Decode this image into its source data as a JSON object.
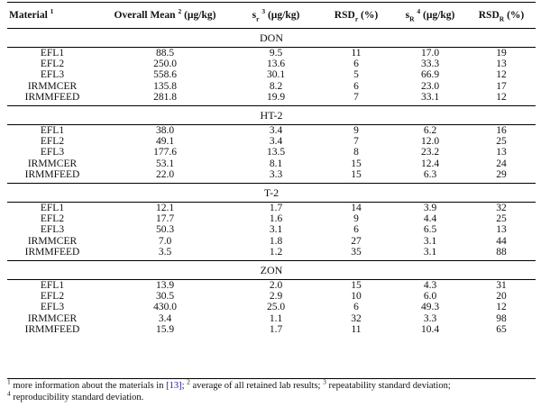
{
  "headers": {
    "material": "Material",
    "material_sup": "1",
    "overall_mean": "Overall Mean",
    "overall_mean_sup": "2",
    "overall_mean_unit": "(µg/kg)",
    "sr_base": "s",
    "sr_sub": "r",
    "sr_sup": "3",
    "sr_unit": "(µg/kg)",
    "rsdr_base": "RSD",
    "rsdr_sub": "r",
    "rsdr_unit": "(%)",
    "sR_base": "s",
    "sR_sub": "R",
    "sR_sup": "4",
    "sR_unit": "(µg/kg)",
    "rsdR_base": "RSD",
    "rsdR_sub": "R",
    "rsdR_unit": "(%)"
  },
  "sections": [
    {
      "title": "DON",
      "rows": [
        [
          "EFL1",
          "88.5",
          "9.5",
          "11",
          "17.0",
          "19"
        ],
        [
          "EFL2",
          "250.0",
          "13.6",
          "6",
          "33.3",
          "13"
        ],
        [
          "EFL3",
          "558.6",
          "30.1",
          "5",
          "66.9",
          "12"
        ],
        [
          "IRMMCER",
          "135.8",
          "8.2",
          "6",
          "23.0",
          "17"
        ],
        [
          "IRMMFEED",
          "281.8",
          "19.9",
          "7",
          "33.1",
          "12"
        ]
      ]
    },
    {
      "title": "HT-2",
      "rows": [
        [
          "EFL1",
          "38.0",
          "3.4",
          "9",
          "6.2",
          "16"
        ],
        [
          "EFL2",
          "49.1",
          "3.4",
          "7",
          "12.0",
          "25"
        ],
        [
          "EFL3",
          "177.6",
          "13.5",
          "8",
          "23.2",
          "13"
        ],
        [
          "IRMMCER",
          "53.1",
          "8.1",
          "15",
          "12.4",
          "24"
        ],
        [
          "IRMMFEED",
          "22.0",
          "3.3",
          "15",
          "6.3",
          "29"
        ]
      ]
    },
    {
      "title": "T-2",
      "rows": [
        [
          "EFL1",
          "12.1",
          "1.7",
          "14",
          "3.9",
          "32"
        ],
        [
          "EFL2",
          "17.7",
          "1.6",
          "9",
          "4.4",
          "25"
        ],
        [
          "EFL3",
          "50.3",
          "3.1",
          "6",
          "6.5",
          "13"
        ],
        [
          "IRMMCER",
          "7.0",
          "1.8",
          "27",
          "3.1",
          "44"
        ],
        [
          "IRMMFEED",
          "3.5",
          "1.2",
          "35",
          "3.1",
          "88"
        ]
      ]
    },
    {
      "title": "ZON",
      "rows": [
        [
          "EFL1",
          "13.9",
          "2.0",
          "15",
          "4.3",
          "31"
        ],
        [
          "EFL2",
          "30.5",
          "2.9",
          "10",
          "6.0",
          "20"
        ],
        [
          "EFL3",
          "430.0",
          "25.0",
          "6",
          "49.3",
          "12"
        ],
        [
          "IRMMCER",
          "3.4",
          "1.1",
          "32",
          "3.3",
          "98"
        ],
        [
          "IRMMFEED",
          "15.9",
          "1.7",
          "11",
          "10.4",
          "65"
        ]
      ]
    }
  ],
  "footnotes": {
    "n1_sup": "1",
    "n1_text": " more information about the materials in ",
    "n1_ref": "[13]",
    "n2_sep": "; ",
    "n2_sup": "2",
    "n2_text": " average of all retained lab results; ",
    "n3_sup": "3",
    "n3_text": " repeatability standard deviation;",
    "n4_sup": "4",
    "n4_text": " reproducibility standard deviation."
  },
  "colors": {
    "ref_link": "#1a1aa6",
    "rule": "#000000"
  }
}
